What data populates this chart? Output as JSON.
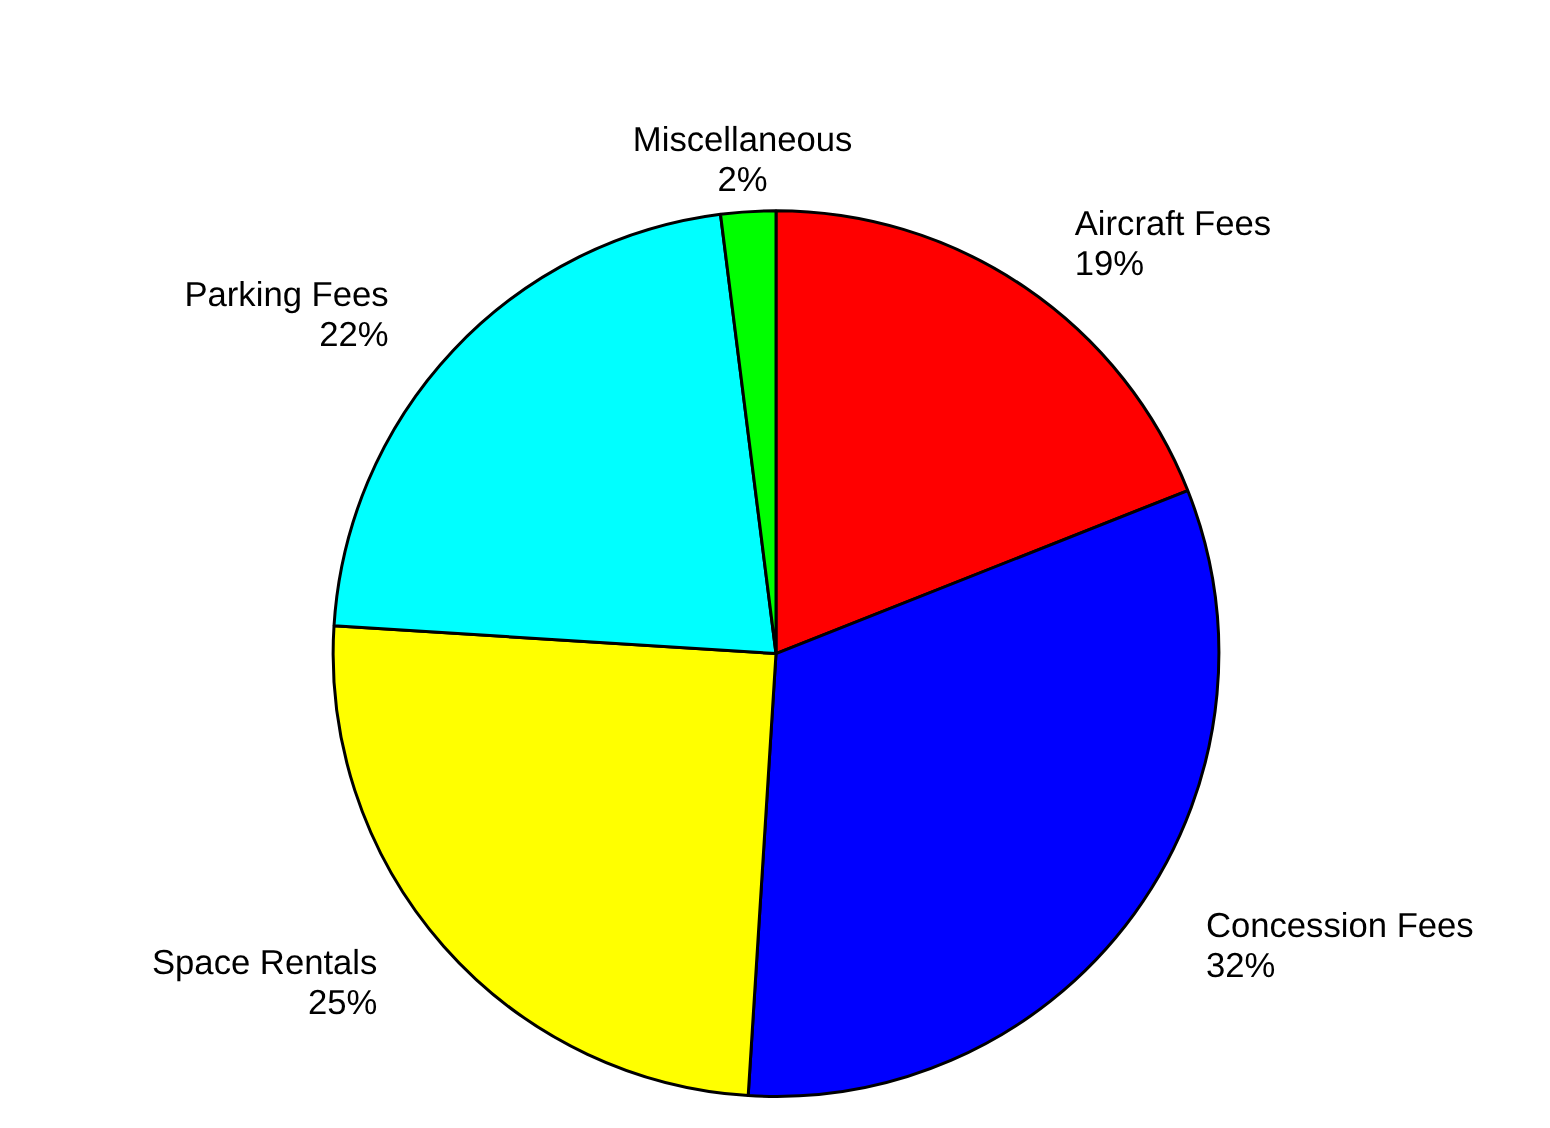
{
  "chart_data": {
    "type": "pie",
    "categories": [
      "Aircraft Fees",
      "Concession Fees",
      "Space Rentals",
      "Parking Fees",
      "Miscellaneous"
    ],
    "values": [
      19,
      32,
      25,
      22,
      2
    ],
    "colors": [
      "#ff0000",
      "#0000ff",
      "#ffff00",
      "#00ffff",
      "#00ff00"
    ],
    "value_labels": [
      "19%",
      "32%",
      "25%",
      "22%",
      "2%"
    ]
  }
}
